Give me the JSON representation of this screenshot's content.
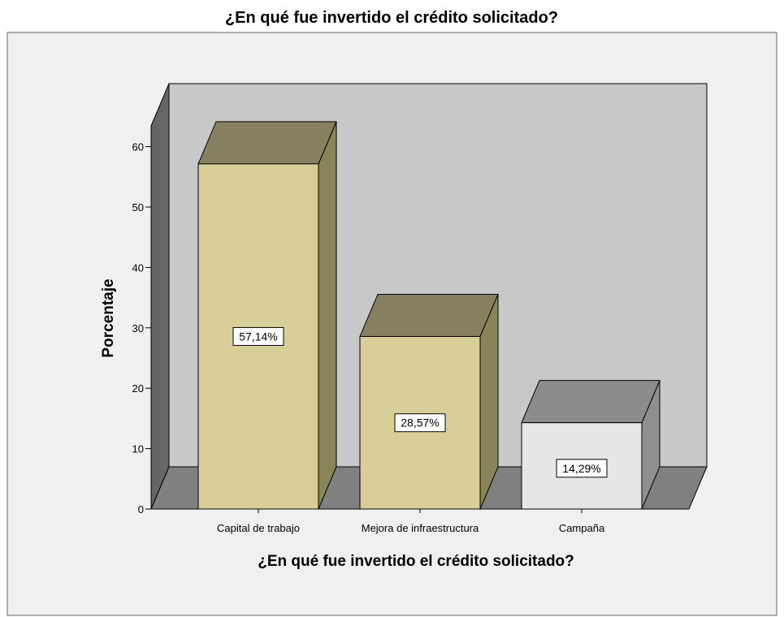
{
  "chart_data": {
    "type": "bar",
    "title": "¿En qué fue invertido el crédito solicitado?",
    "xlabel": "¿En qué fue invertido el crédito solicitado?",
    "ylabel": "Porcentaje",
    "categories": [
      "Capital de trabajo",
      "Mejora de infraestructura",
      "Campaña"
    ],
    "values": [
      57.14,
      28.57,
      14.29
    ],
    "data_labels": [
      "57,14%",
      "28,57%",
      "14,29%"
    ],
    "ylim": [
      0,
      65
    ],
    "yticks": [
      0,
      10,
      20,
      30,
      40,
      50,
      60
    ],
    "grid": false,
    "legend": "none",
    "style": "3d",
    "colors": {
      "bar_front": [
        "#D8CF98",
        "#D8CF98",
        "#E6E6E6"
      ],
      "bar_top": [
        "#878060",
        "#878060",
        "#8C8C8C"
      ],
      "bar_side": [
        "#8A8459",
        "#8A8459",
        "#8F8F8F"
      ],
      "back_wall": "#C8C8C8",
      "floor": "#808080",
      "side_wall": "#666666",
      "plot_background": "#F0F0F0"
    }
  }
}
